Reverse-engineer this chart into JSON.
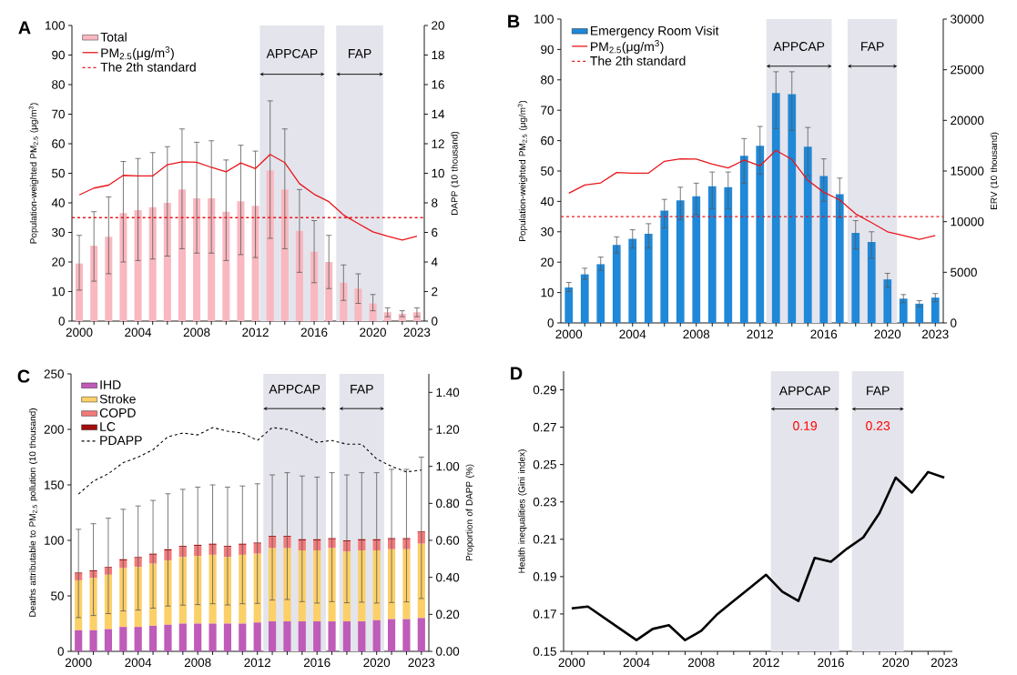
{
  "chart_data": [
    {
      "type": "bar",
      "title": "A",
      "ylabel": "Population-weighted PM$_{2.5}$ (μg/m$^{3}$)",
      "y2label": "DAPP (10 thousand)",
      "x": [
        2000,
        2001,
        2002,
        2003,
        2004,
        2005,
        2006,
        2007,
        2008,
        2009,
        2010,
        2011,
        2012,
        2013,
        2014,
        2015,
        2016,
        2017,
        2018,
        2019,
        2020,
        2021,
        2022,
        2023
      ],
      "xlim": [
        1999.5,
        2023.5
      ],
      "xticks": [
        2000,
        {
          "value": 2001,
          "label": null
        },
        {
          "value": 2002,
          "label": null
        },
        {
          "value": 2003,
          "label": null
        },
        2004,
        {
          "value": 2005,
          "label": null
        },
        {
          "value": 2006,
          "label": null
        },
        {
          "value": 2007,
          "label": null
        },
        2008,
        {
          "value": 2009,
          "label": null
        },
        {
          "value": 2010,
          "label": null
        },
        {
          "value": 2011,
          "label": null
        },
        2012,
        {
          "value": 2013,
          "label": null
        },
        {
          "value": 2014,
          "label": null
        },
        {
          "value": 2015,
          "label": null
        },
        2016,
        {
          "value": 2017,
          "label": null
        },
        {
          "value": 2018,
          "label": null
        },
        {
          "value": 2019,
          "label": null
        },
        2020,
        {
          "value": 2021,
          "label": null
        },
        {
          "value": 2022,
          "label": null
        },
        2023
      ],
      "ylim": [
        0,
        100
      ],
      "yticks": [
        0,
        10,
        20,
        30,
        40,
        50,
        60,
        70,
        80,
        90,
        100
      ],
      "y2lim": [
        0,
        20
      ],
      "y2ticks": [
        0,
        2,
        4,
        6,
        8,
        10,
        12,
        14,
        16,
        18,
        20
      ],
      "series": [
        {
          "name": "Total",
          "type": "bar",
          "axis": "y2",
          "color": "#f9b8c0",
          "values": [
            3.9,
            5.1,
            5.7,
            7.3,
            7.5,
            7.7,
            8.0,
            8.9,
            8.3,
            8.3,
            7.4,
            8.1,
            7.8,
            10.2,
            8.9,
            6.1,
            4.7,
            4.0,
            2.6,
            2.2,
            1.2,
            0.6,
            0.5,
            0.6
          ],
          "errors": [
            [
              2.1,
              5.8
            ],
            [
              2.7,
              7.4
            ],
            [
              3.2,
              8.4
            ],
            [
              4.0,
              10.8
            ],
            [
              4.1,
              11.0
            ],
            [
              4.2,
              11.4
            ],
            [
              4.4,
              11.8
            ],
            [
              4.9,
              13.0
            ],
            [
              4.6,
              12.1
            ],
            [
              4.6,
              12.2
            ],
            [
              4.1,
              10.9
            ],
            [
              4.5,
              11.9
            ],
            [
              4.3,
              11.5
            ],
            [
              5.6,
              14.9
            ],
            [
              4.9,
              13.0
            ],
            [
              3.3,
              8.9
            ],
            [
              2.6,
              6.8
            ],
            [
              2.2,
              5.8
            ],
            [
              1.4,
              3.8
            ],
            [
              1.2,
              3.2
            ],
            [
              0.7,
              1.8
            ],
            [
              0.3,
              0.9
            ],
            [
              0.3,
              0.7
            ],
            [
              0.3,
              0.9
            ]
          ]
        },
        {
          "name": "PM$_{2.5}$(μg/m$^{3}$)",
          "type": "line",
          "axis": "y",
          "color": "#e8161b",
          "values": [
            42.7,
            45.0,
            46.0,
            49.3,
            49.1,
            49.1,
            52.9,
            53.9,
            53.7,
            52.0,
            50.5,
            53.5,
            51.6,
            56.4,
            53.6,
            46.5,
            42.9,
            40.4,
            35.9,
            33.0,
            30.2,
            28.7,
            27.4,
            28.7
          ]
        }
      ],
      "ref_lines": [
        {
          "axis": "y",
          "value": 35,
          "label": "The 2th standard",
          "color": "#e8161b",
          "line_style": "dashed"
        }
      ],
      "bands": [
        {
          "axis": "x",
          "from": 2012.3,
          "to": 2016.7,
          "label": "APPCAP",
          "color": "#e4e4ec"
        },
        {
          "axis": "x",
          "from": 2017.5,
          "to": 2020.7,
          "label": "FAP",
          "color": "#e4e4ec"
        }
      ],
      "legend": "top left",
      "marker": "none"
    },
    {
      "type": "bar",
      "title": "B",
      "ylabel": "Population-weighted PM$_{2.5}$ (μg/m$^{3}$)",
      "y2label": "ERV (10 thousand)",
      "x": [
        2000,
        2001,
        2002,
        2003,
        2004,
        2005,
        2006,
        2007,
        2008,
        2009,
        2010,
        2011,
        2012,
        2013,
        2014,
        2015,
        2016,
        2017,
        2018,
        2019,
        2020,
        2021,
        2022,
        2023
      ],
      "xlim": [
        1999.5,
        2023.5
      ],
      "xticks": [
        2000,
        {
          "value": 2001,
          "label": null
        },
        {
          "value": 2002,
          "label": null
        },
        {
          "value": 2003,
          "label": null
        },
        2004,
        {
          "value": 2005,
          "label": null
        },
        {
          "value": 2006,
          "label": null
        },
        {
          "value": 2007,
          "label": null
        },
        2008,
        {
          "value": 2009,
          "label": null
        },
        {
          "value": 2010,
          "label": null
        },
        {
          "value": 2011,
          "label": null
        },
        2012,
        {
          "value": 2013,
          "label": null
        },
        {
          "value": 2014,
          "label": null
        },
        {
          "value": 2015,
          "label": null
        },
        2016,
        {
          "value": 2017,
          "label": null
        },
        {
          "value": 2018,
          "label": null
        },
        {
          "value": 2019,
          "label": null
        },
        2020,
        {
          "value": 2021,
          "label": null
        },
        {
          "value": 2022,
          "label": null
        },
        2023
      ],
      "ylim": [
        0,
        100
      ],
      "yticks": [
        0,
        10,
        20,
        30,
        40,
        50,
        60,
        70,
        80,
        90,
        100
      ],
      "y2lim": [
        0,
        30000
      ],
      "y2ticks": [
        0,
        5000,
        10000,
        15000,
        20000,
        25000,
        30000
      ],
      "series": [
        {
          "name": "Emergency Room Visit",
          "type": "bar",
          "axis": "y2",
          "color": "#1f88d8",
          "values": [
            3500,
            4800,
            5800,
            7700,
            8300,
            8800,
            11100,
            12100,
            12500,
            13500,
            13400,
            16500,
            17500,
            22700,
            22600,
            17400,
            14500,
            12700,
            8900,
            8000,
            4300,
            2400,
            1900,
            2500
          ],
          "errors": [
            [
              3100,
              4000
            ],
            [
              4300,
              5400
            ],
            [
              5200,
              6500
            ],
            [
              6900,
              8500
            ],
            [
              7400,
              9200
            ],
            [
              7400,
              9800
            ],
            [
              9400,
              12200
            ],
            [
              10200,
              13400
            ],
            [
              10700,
              13800
            ],
            [
              11300,
              14900
            ],
            [
              11300,
              14900
            ],
            [
              13800,
              18200
            ],
            [
              14700,
              19400
            ],
            [
              19200,
              24800
            ],
            [
              19000,
              24800
            ],
            [
              14500,
              19300
            ],
            [
              12000,
              16200
            ],
            [
              10400,
              14300
            ],
            [
              7300,
              10100
            ],
            [
              6400,
              9000
            ],
            [
              3500,
              4900
            ],
            [
              2000,
              2800
            ],
            [
              1600,
              2200
            ],
            [
              2100,
              2900
            ]
          ]
        },
        {
          "name": "PM$_{2.5}$(μg/m$^{3}$)",
          "type": "line",
          "axis": "y",
          "color": "#e8161b",
          "values": [
            42.7,
            45.4,
            46.1,
            49.5,
            49.3,
            49.3,
            53.2,
            54.0,
            53.9,
            52.3,
            51.0,
            53.6,
            51.7,
            56.8,
            53.8,
            46.9,
            43.0,
            40.5,
            35.9,
            33.0,
            30.0,
            28.8,
            27.5,
            28.8
          ]
        }
      ],
      "ref_lines": [
        {
          "axis": "y",
          "value": 35,
          "label": "The 2th standard",
          "color": "#e8161b",
          "line_style": "dashed"
        }
      ],
      "bands": [
        {
          "axis": "x",
          "from": 2012.4,
          "to": 2016.5,
          "label": "APPCAP",
          "color": "#e4e4ec"
        },
        {
          "axis": "x",
          "from": 2017.5,
          "to": 2020.6,
          "label": "FAP",
          "color": "#e4e4ec"
        }
      ],
      "legend": "top left",
      "marker": "none"
    },
    {
      "type": "bar",
      "title": "C",
      "stacked": true,
      "ylabel": "Deaths attributable to PM$_{2.5}$ pollution (10 thousand)",
      "y2label": "Proportion of DAPP (%)",
      "x": [
        2000,
        2001,
        2002,
        2003,
        2004,
        2005,
        2006,
        2007,
        2008,
        2009,
        2010,
        2011,
        2012,
        2013,
        2014,
        2015,
        2016,
        2017,
        2018,
        2019,
        2020,
        2021,
        2022,
        2023
      ],
      "xlim": [
        1999.5,
        2023.5
      ],
      "xticks": [
        2000,
        {
          "value": 2001,
          "label": null
        },
        {
          "value": 2002,
          "label": null
        },
        {
          "value": 2003,
          "label": null
        },
        2004,
        {
          "value": 2005,
          "label": null
        },
        {
          "value": 2006,
          "label": null
        },
        {
          "value": 2007,
          "label": null
        },
        2008,
        {
          "value": 2009,
          "label": null
        },
        {
          "value": 2010,
          "label": null
        },
        {
          "value": 2011,
          "label": null
        },
        2012,
        {
          "value": 2013,
          "label": null
        },
        {
          "value": 2014,
          "label": null
        },
        {
          "value": 2015,
          "label": null
        },
        2016,
        {
          "value": 2017,
          "label": null
        },
        {
          "value": 2018,
          "label": null
        },
        {
          "value": 2019,
          "label": null
        },
        2020,
        {
          "value": 2021,
          "label": null
        },
        {
          "value": 2022,
          "label": null
        },
        2023
      ],
      "ylim": [
        0,
        250
      ],
      "yticks": [
        0,
        50,
        100,
        150,
        200,
        250
      ],
      "y2lim": [
        0,
        1.5
      ],
      "y2ticks": [
        {
          "value": 0,
          "label": "0.00"
        },
        {
          "value": 0.2,
          "label": "0.20"
        },
        {
          "value": 0.4,
          "label": "0.40"
        },
        {
          "value": 0.6,
          "label": "0.60"
        },
        {
          "value": 0.8,
          "label": "0.80"
        },
        {
          "value": 1.0,
          "label": "1.00"
        },
        {
          "value": 1.2,
          "label": "1.20"
        },
        {
          "value": 1.4,
          "label": "1.40"
        }
      ],
      "series": [
        {
          "name": "IHD",
          "type": "bar",
          "axis": "y",
          "color": "#bf5bb8",
          "values": [
            19,
            19,
            20,
            22,
            22,
            23,
            24,
            25,
            25,
            25,
            25,
            25,
            26,
            27,
            27,
            27,
            27,
            27,
            27,
            27,
            28,
            29,
            29,
            30
          ]
        },
        {
          "name": "Stroke",
          "type": "bar",
          "axis": "y",
          "color": "#fcd068",
          "values": [
            45,
            47,
            49,
            53,
            54,
            56,
            58,
            60,
            61,
            62,
            60,
            62,
            62,
            66,
            66,
            64,
            64,
            66,
            63,
            64,
            63,
            63,
            63,
            67
          ]
        },
        {
          "name": "COPD",
          "type": "bar",
          "axis": "y",
          "color": "#f47a7a",
          "values": [
            6,
            6,
            6,
            7,
            8,
            8,
            9,
            9,
            9,
            9,
            9,
            9,
            9,
            10,
            10,
            9,
            9,
            8,
            9,
            9,
            9,
            9,
            9,
            10
          ]
        },
        {
          "name": "LC",
          "type": "bar",
          "axis": "y",
          "color": "#a30e0e",
          "values": [
            1,
            1,
            1,
            1,
            1,
            1,
            1,
            1,
            1,
            1,
            1,
            1,
            1,
            1,
            1,
            1,
            1,
            1,
            1,
            1,
            1,
            1,
            1,
            1
          ],
          "errors": [
            [
              30.4,
              110
            ],
            [
              32.3,
              115
            ],
            [
              34.0,
              120
            ],
            [
              36.4,
              128
            ],
            [
              37.2,
              131
            ],
            [
              38.9,
              136
            ],
            [
              40.8,
              142
            ],
            [
              41.6,
              146
            ],
            [
              42.1,
              148
            ],
            [
              42.9,
              150
            ],
            [
              41.8,
              148
            ],
            [
              42.9,
              149
            ],
            [
              43.2,
              151
            ],
            [
              46.2,
              159
            ],
            [
              46.7,
              161
            ],
            [
              44.8,
              158
            ],
            [
              43.5,
              157
            ],
            [
              44.8,
              161
            ],
            [
              43.8,
              159
            ],
            [
              44.3,
              161
            ],
            [
              43.5,
              161
            ],
            [
              44.0,
              164
            ],
            [
              44.6,
              164
            ],
            [
              47.6,
              175
            ]
          ]
        },
        {
          "name": "PDAPP",
          "type": "line",
          "axis": "y2",
          "color": "#000000",
          "line_style": "dashed",
          "values": [
            0.85,
            0.92,
            0.96,
            1.02,
            1.05,
            1.09,
            1.16,
            1.18,
            1.17,
            1.21,
            1.19,
            1.18,
            1.14,
            1.21,
            1.2,
            1.17,
            1.13,
            1.14,
            1.12,
            1.12,
            1.04,
            1.0,
            0.97,
            0.98
          ]
        }
      ],
      "bands": [
        {
          "axis": "x",
          "from": 2012.4,
          "to": 2016.6,
          "label": "APPCAP",
          "color": "#e4e4ec"
        },
        {
          "axis": "x",
          "from": 2017.5,
          "to": 2020.5,
          "label": "FAP",
          "color": "#e4e4ec"
        }
      ],
      "legend": "top left",
      "marker": "none"
    },
    {
      "type": "line",
      "title": "D",
      "ylabel": "Health inequalities (Gini index)",
      "x": [
        2000,
        2001,
        2002,
        2003,
        2004,
        2005,
        2006,
        2007,
        2008,
        2009,
        2010,
        2011,
        2012,
        2013,
        2014,
        2015,
        2016,
        2017,
        2018,
        2019,
        2020,
        2021,
        2022,
        2023
      ],
      "xlim": [
        1999.5,
        2023.5
      ],
      "xticks": [
        2000,
        {
          "value": 2001,
          "label": null
        },
        {
          "value": 2002,
          "label": null
        },
        {
          "value": 2003,
          "label": null
        },
        2004,
        {
          "value": 2005,
          "label": null
        },
        {
          "value": 2006,
          "label": null
        },
        {
          "value": 2007,
          "label": null
        },
        2008,
        {
          "value": 2009,
          "label": null
        },
        {
          "value": 2010,
          "label": null
        },
        {
          "value": 2011,
          "label": null
        },
        2012,
        {
          "value": 2013,
          "label": null
        },
        {
          "value": 2014,
          "label": null
        },
        {
          "value": 2015,
          "label": null
        },
        2016,
        {
          "value": 2017,
          "label": null
        },
        {
          "value": 2018,
          "label": null
        },
        {
          "value": 2019,
          "label": null
        },
        2020,
        {
          "value": 2021,
          "label": null
        },
        {
          "value": 2022,
          "label": null
        },
        2023
      ],
      "ylim": [
        0.15,
        0.3
      ],
      "yticks": [
        0.15,
        0.17,
        0.19,
        0.21,
        0.23,
        0.25,
        0.27,
        0.29
      ],
      "series": [
        {
          "color": "#000000",
          "values": [
            0.173,
            0.174,
            0.168,
            0.162,
            0.156,
            0.162,
            0.164,
            0.156,
            0.161,
            0.17,
            0.177,
            0.184,
            0.191,
            0.182,
            0.177,
            0.2,
            0.198,
            0.205,
            0.211,
            0.224,
            0.243,
            0.235,
            0.246,
            0.243
          ]
        }
      ],
      "bands": [
        {
          "axis": "x",
          "from": 2012.3,
          "to": 2016.5,
          "label": "APPCAP",
          "color": "#e4e4ec"
        },
        {
          "axis": "x",
          "from": 2017.3,
          "to": 2020.5,
          "label": "FAP",
          "color": "#e4e4ec"
        }
      ],
      "annotations": [
        "0.19",
        "0.23"
      ],
      "marker": "none"
    }
  ]
}
